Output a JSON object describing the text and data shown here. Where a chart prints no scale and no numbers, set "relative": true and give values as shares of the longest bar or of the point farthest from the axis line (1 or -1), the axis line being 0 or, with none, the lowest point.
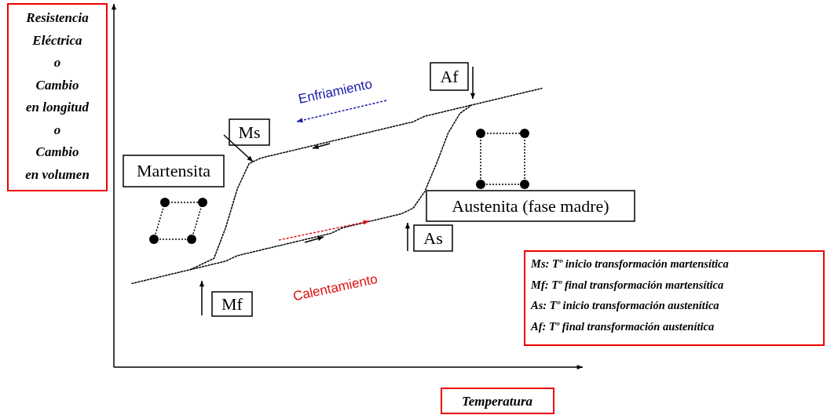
{
  "chart_data": {
    "type": "line",
    "relative": true,
    "line_style": "dotted",
    "xlabel": "Temperatura",
    "ylabel": "Resistencia\nEléctrica\no\nCambio\nen longitud\no\nCambio\nen volumen",
    "categories": [
      null,
      null,
      null,
      null,
      null,
      null,
      null,
      null,
      null,
      null,
      null,
      null,
      null,
      null,
      null,
      null,
      null,
      null,
      null,
      null,
      null,
      null,
      null,
      null,
      null,
      null,
      null,
      null,
      null,
      null,
      null,
      null,
      null,
      null,
      null,
      null
    ],
    "series": [
      {
        "color": "#000000",
        "values": [
          0.3,
          0.31,
          0.32,
          0.33,
          0.34,
          0.35,
          0.36,
          0.37,
          0.38,
          0.4,
          0.41,
          0.42,
          0.43,
          0.44,
          0.45,
          0.46,
          0.47,
          0.48,
          0.5,
          0.51,
          0.52,
          0.53,
          0.54,
          0.55,
          0.57,
          0.63,
          0.73,
          0.84,
          0.91,
          0.94,
          0.95,
          0.96,
          0.97,
          0.98,
          0.99,
          1
        ]
      },
      {
        "color": "#000000",
        "values": [
          null,
          null,
          null,
          null,
          null,
          0.35,
          0.37,
          0.39,
          0.5,
          0.64,
          0.73,
          0.75,
          0.76,
          0.77,
          0.78,
          0.79,
          0.8,
          0.81,
          0.82,
          0.83,
          0.84,
          0.85,
          0.86,
          0.87,
          0.88,
          0.9,
          0.91,
          0.92,
          0.93,
          0.94,
          null,
          null,
          null,
          null,
          null,
          null
        ]
      }
    ],
    "annotations": [
      "Martensita",
      "Ms",
      "Af",
      "Austenita (fase madre)",
      "As",
      "Mf",
      "Enfriamiento",
      "Calentamiento",
      "Ms: Tº inicio transformación martensítica",
      "Mf: Tº final transformación martensítica",
      "As: Tº inicio transformación austenítica",
      "Af: Tº final transformación austenítica"
    ]
  }
}
